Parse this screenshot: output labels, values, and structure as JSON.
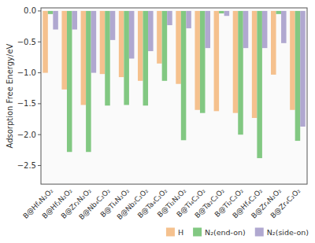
{
  "chart_data": {
    "type": "bar",
    "ylabel": "Adsorption Free Energy/eV",
    "categories": [
      "B@Hf₄N₂O₂",
      "B@Hf₂N₂O₂",
      "B@Zr₂N₂O₂",
      "B@Nb₄C₂O₂",
      "B@Ti₄N₂O₂",
      "B@Nb₂C₂O₂",
      "B@Ta₄C₂O₂",
      "B@Ti₂N₂O₂",
      "B@Ti₄C₂O₂",
      "B@Ta₂C₂O₂",
      "B@Ti₂C₂O₂",
      "B@Hf₄C₂O₂",
      "B@Zr₄N₂O₂",
      "B@Zr₄C₂O₂"
    ],
    "series": [
      {
        "name": "H",
        "color": "#f5c18e",
        "values": [
          -1.0,
          -1.27,
          -1.52,
          -1.02,
          -1.07,
          -1.13,
          -0.85,
          -1.18,
          -1.6,
          -1.62,
          -1.65,
          -1.73,
          -1.03,
          -1.6
        ]
      },
      {
        "name": "N₂(end-on)",
        "color": "#82c882",
        "values": [
          -0.05,
          -2.28,
          -2.28,
          -1.53,
          -1.52,
          -1.53,
          -1.13,
          -2.09,
          -1.65,
          -0.04,
          -2.0,
          -2.38,
          -0.05,
          -2.1
        ]
      },
      {
        "name": "N₂(side-on)",
        "color": "#b0a8d0",
        "values": [
          -0.3,
          -0.3,
          -1.0,
          -0.47,
          -0.77,
          -0.65,
          -0.23,
          -0.28,
          -0.6,
          -0.08,
          -0.6,
          -0.6,
          -0.52,
          -1.87
        ]
      }
    ],
    "ylim": [
      -2.8,
      0.05
    ],
    "yticks": [
      {
        "value": 0.0,
        "label": "0.0"
      },
      {
        "value": -0.5,
        "label": "−0.5"
      },
      {
        "value": -1.0,
        "label": "−1.0"
      },
      {
        "value": -1.5,
        "label": "−1.5"
      },
      {
        "value": -2.0,
        "label": "−2.0"
      },
      {
        "value": -2.5,
        "label": "−2.5"
      }
    ],
    "grid": false,
    "legend": "lower right"
  }
}
